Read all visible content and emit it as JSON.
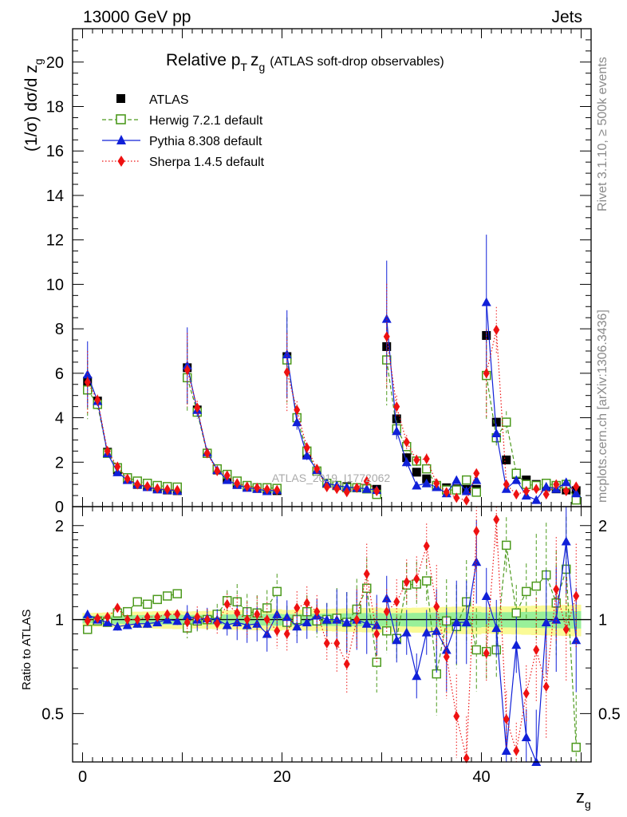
{
  "header": {
    "left": "13000 GeV pp",
    "right": "Jets"
  },
  "side_texts": {
    "rivet": "Rivet 3.1.10, ≥ 500k events",
    "mcplots": "mcplots.cern.ch [arXiv:1306.3436]"
  },
  "watermark": "ATLAS_2019_I1772062",
  "chart_data": {
    "type": "scatter",
    "title_main": "Relative p",
    "title_sub": "T",
    "title_zg": "z",
    "title_zg_sub": "g",
    "title_tail": "(ATLAS soft-drop observables)",
    "ylabel": "(1/σ) dσ/d z",
    "ylabel_sub": "g",
    "ratio_ylabel": "Ratio to ATLAS",
    "xlabel": "z",
    "xlabel_sub": "g",
    "xlim": [
      -1,
      51
    ],
    "ylim": [
      0,
      21.5
    ],
    "ratio_ylim": [
      0.35,
      2.3
    ],
    "x_ticks": [
      0,
      20,
      40
    ],
    "y_ticks": [
      0,
      2,
      4,
      6,
      8,
      10,
      12,
      14,
      16,
      18,
      20
    ],
    "ratio_ticks": [
      0.5,
      1,
      2
    ],
    "legend": [
      "ATLAS",
      "Herwig 7.2.1 default",
      "Pythia 8.308 default",
      "Sherpa 1.4.5 default"
    ],
    "x": [
      0.5,
      1.5,
      2.5,
      3.5,
      4.5,
      5.5,
      6.5,
      7.5,
      8.5,
      9.5,
      10.5,
      11.5,
      12.5,
      13.5,
      14.5,
      15.5,
      16.5,
      17.5,
      18.5,
      19.5,
      20.5,
      21.5,
      22.5,
      23.5,
      24.5,
      25.5,
      26.5,
      27.5,
      28.5,
      29.5,
      30.5,
      31.5,
      32.5,
      33.5,
      34.5,
      35.5,
      36.5,
      37.5,
      38.5,
      39.5,
      40.5,
      41.5,
      42.5,
      43.5,
      44.5,
      45.5,
      46.5,
      47.5,
      48.5,
      49.5
    ],
    "series": [
      {
        "name": "ATLAS",
        "values": [
          5.65,
          4.75,
          2.45,
          1.65,
          1.25,
          1.0,
          0.9,
          0.8,
          0.75,
          0.72,
          6.25,
          4.35,
          2.4,
          1.65,
          1.25,
          1.0,
          0.9,
          0.82,
          0.78,
          0.72,
          6.75,
          4.0,
          2.35,
          1.6,
          1.05,
          0.95,
          0.9,
          0.85,
          0.82,
          0.78,
          7.2,
          3.95,
          2.2,
          1.55,
          1.25,
          0.95,
          0.85,
          0.8,
          0.78,
          0.78,
          7.7,
          3.8,
          2.1,
          1.45,
          1.2,
          1.0,
          0.9,
          0.8,
          0.75,
          0.72
        ]
      },
      {
        "name": "Herwig 7.2.1 default",
        "values": [
          5.25,
          4.6,
          2.4,
          1.75,
          1.3,
          1.15,
          1.05,
          0.95,
          0.9,
          0.88,
          5.8,
          4.25,
          2.4,
          1.7,
          1.45,
          1.15,
          0.95,
          0.85,
          0.85,
          0.82,
          6.6,
          4.0,
          2.5,
          1.6,
          1.05,
          0.95,
          0.85,
          0.85,
          0.8,
          0.55,
          6.6,
          3.5,
          2.7,
          2.05,
          1.7,
          0.95,
          0.75,
          0.75,
          1.2,
          0.65,
          5.9,
          3.1,
          3.8,
          1.5,
          1.0,
          0.95,
          1.05,
          0.95,
          1.0,
          0.3
        ]
      },
      {
        "name": "Pythia 8.308 default",
        "values": [
          5.95,
          4.75,
          2.4,
          1.55,
          1.2,
          1.0,
          0.88,
          0.78,
          0.75,
          0.72,
          6.35,
          4.35,
          2.45,
          1.65,
          1.2,
          0.98,
          0.85,
          0.8,
          0.7,
          0.75,
          6.85,
          3.8,
          2.3,
          1.65,
          1.05,
          0.95,
          0.88,
          0.85,
          0.8,
          0.75,
          8.45,
          3.4,
          2.0,
          0.95,
          1.05,
          0.88,
          0.6,
          1.2,
          0.7,
          1.2,
          9.2,
          3.3,
          0.8,
          1.2,
          0.5,
          0.3,
          0.9,
          0.8,
          1.1,
          0.6
        ]
      },
      {
        "name": "Sherpa 1.4.5 default",
        "values": [
          5.6,
          4.8,
          2.5,
          1.8,
          1.25,
          1.0,
          0.92,
          0.82,
          0.78,
          0.75,
          6.15,
          4.45,
          2.4,
          1.6,
          1.4,
          1.05,
          0.9,
          0.85,
          0.78,
          0.75,
          6.05,
          4.35,
          2.65,
          1.7,
          0.88,
          0.8,
          0.65,
          0.85,
          1.15,
          0.7,
          7.65,
          4.5,
          2.9,
          2.1,
          2.15,
          1.05,
          0.65,
          0.4,
          0.28,
          1.5,
          6.0,
          7.95,
          1.0,
          0.55,
          0.7,
          0.8,
          0.55,
          1.0,
          0.7,
          0.9
        ]
      }
    ],
    "ratio_series": [
      {
        "name": "Herwig 7.2.1 default",
        "values": [
          0.93,
          0.99,
          0.98,
          1.05,
          1.06,
          1.14,
          1.12,
          1.16,
          1.19,
          1.21,
          0.94,
          0.99,
          1.0,
          1.04,
          1.15,
          1.14,
          1.06,
          1.05,
          1.09,
          1.23,
          0.98,
          1.0,
          1.06,
          0.99,
          1.0,
          1.01,
          0.98,
          1.08,
          1.26,
          0.73,
          0.92,
          0.87,
          1.29,
          1.3,
          1.33,
          0.67,
          0.99,
          0.95,
          1.14,
          0.8,
          0.79,
          0.8,
          1.73,
          1.05,
          1.23,
          1.28,
          1.39,
          1.13,
          1.45,
          0.39
        ]
      },
      {
        "name": "Pythia 8.308 default",
        "values": [
          1.04,
          1.0,
          0.98,
          0.95,
          0.96,
          0.97,
          0.97,
          0.98,
          1.0,
          0.99,
          1.03,
          1.0,
          1.01,
          1.0,
          0.96,
          0.98,
          0.96,
          0.97,
          0.9,
          1.04,
          1.02,
          0.95,
          0.98,
          1.03,
          1.0,
          1.0,
          0.98,
          1.0,
          0.97,
          0.96,
          1.17,
          0.86,
          0.91,
          0.66,
          0.91,
          0.92,
          0.8,
          0.98,
          0.98,
          1.53,
          1.19,
          0.94,
          0.38,
          0.83,
          0.42,
          0.35,
          0.98,
          1.0,
          1.78,
          0.86
        ]
      },
      {
        "name": "Sherpa 1.4.5 default",
        "values": [
          0.99,
          1.01,
          1.02,
          1.09,
          1.0,
          1.0,
          1.02,
          1.02,
          1.04,
          1.04,
          0.98,
          1.02,
          1.0,
          0.97,
          1.12,
          1.05,
          1.0,
          1.04,
          1.0,
          0.92,
          0.9,
          1.09,
          1.13,
          1.06,
          0.84,
          0.84,
          0.72,
          1.0,
          1.4,
          0.9,
          1.06,
          1.14,
          1.32,
          1.35,
          1.72,
          1.1,
          0.76,
          0.49,
          0.36,
          1.92,
          0.78,
          2.09,
          0.48,
          0.38,
          0.58,
          0.8,
          0.61,
          1.25,
          0.93,
          1.19
        ]
      }
    ],
    "colors": {
      "atlas": "#000000",
      "herwig": "#4d9a1e",
      "pythia": "#1020d8",
      "sherpa": "#ee1111",
      "band_inner": "#99f099",
      "band_outer": "#fafa96"
    }
  }
}
